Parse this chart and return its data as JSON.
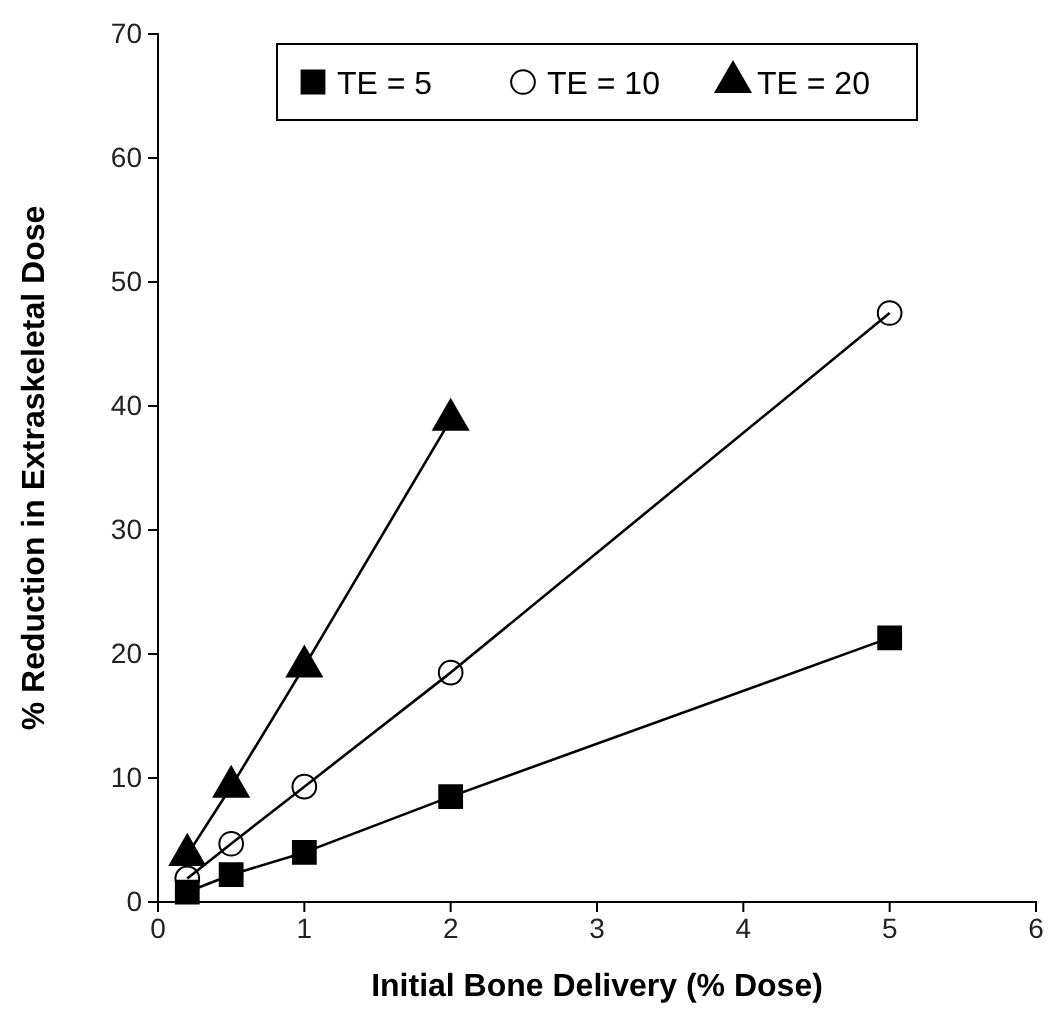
{
  "chart_data": {
    "type": "line",
    "xlabel": "Initial Bone Delivery (% Dose)",
    "ylabel": "% Reduction in Extraskeletal Dose",
    "xlim": [
      0,
      6
    ],
    "xticks": [
      0,
      1,
      2,
      3,
      4,
      5,
      6
    ],
    "ylim": [
      0,
      70
    ],
    "yticks": [
      0,
      10,
      20,
      30,
      40,
      50,
      60,
      70
    ],
    "grid": false,
    "legend": "top",
    "line_style": "solid",
    "series": [
      {
        "name": "TE = 5",
        "color": "#000000",
        "marker": "square",
        "x": [
          0.2,
          0.5,
          1,
          2,
          5
        ],
        "values": [
          0.8,
          2.2,
          4.0,
          8.5,
          21.3
        ]
      },
      {
        "name": "TE = 10",
        "color": "#000000",
        "marker": "circle",
        "x": [
          0.2,
          0.5,
          1,
          2,
          5
        ],
        "values": [
          1.9,
          4.7,
          9.3,
          18.5,
          47.5
        ]
      },
      {
        "name": "TE = 20",
        "color": "#000000",
        "marker": "triangle",
        "x": [
          0.2,
          0.5,
          1,
          2
        ],
        "values": [
          3.8,
          9.3,
          19.0,
          38.9
        ]
      }
    ]
  }
}
